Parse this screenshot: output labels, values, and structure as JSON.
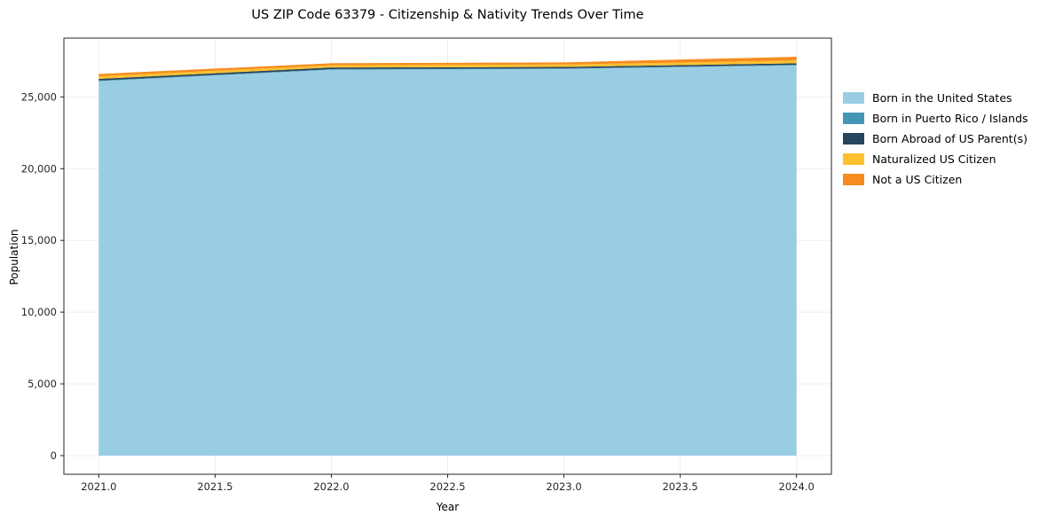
{
  "chart_data": {
    "type": "area",
    "stacked": true,
    "title": "US ZIP Code 63379 - Citizenship & Nativity Trends Over Time",
    "xlabel": "Year",
    "ylabel": "Population",
    "x": [
      2021,
      2022,
      2023,
      2024
    ],
    "series": [
      {
        "name": "Born in the United States",
        "color": "#99cde4",
        "values": [
          26100,
          26900,
          26950,
          27200
        ]
      },
      {
        "name": "Born in Puerto Rico / Islands",
        "color": "#4596b5",
        "values": [
          40,
          40,
          40,
          50
        ]
      },
      {
        "name": "Born Abroad of US Parent(s)",
        "color": "#27455c",
        "values": [
          120,
          110,
          100,
          100
        ]
      },
      {
        "name": "Naturalized US Citizen",
        "color": "#fdc02f",
        "values": [
          180,
          160,
          170,
          190
        ]
      },
      {
        "name": "Not a US Citizen",
        "color": "#f68c1f",
        "values": [
          160,
          140,
          150,
          260
        ]
      }
    ],
    "xlim": [
      2020.85,
      2024.15
    ],
    "ylim": [
      -1300,
      29100
    ],
    "x_ticks": [
      2021.0,
      2021.5,
      2022.0,
      2022.5,
      2023.0,
      2023.5,
      2024.0
    ],
    "y_ticks": [
      0,
      5000,
      10000,
      15000,
      20000,
      25000
    ],
    "grid": true,
    "legend_position": "right",
    "axis_color": "#262626",
    "grid_color": "#ededed"
  }
}
